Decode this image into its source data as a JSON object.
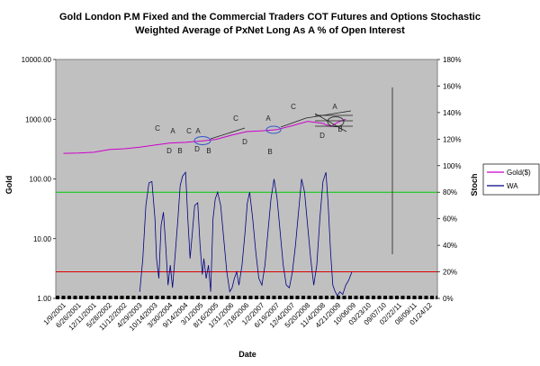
{
  "chart_data": {
    "type": "line",
    "title": "Gold London P.M Fixed and the Commercial Traders COT Futures and Options Stochastic",
    "subtitle": "Weighted Average of PxNet Long As A % of Open Interest",
    "xlabel": "Date",
    "ylabel_left": "Gold",
    "ylabel_right": "Stoch",
    "y_left_scale": "log",
    "y_left_range": [
      1,
      10000
    ],
    "y_left_ticks": [
      "1.00",
      "10.00",
      "100.00",
      "1000.00",
      "10000.00"
    ],
    "y_right_range": [
      0,
      180
    ],
    "y_right_ticks": [
      "0%",
      "20%",
      "40%",
      "60%",
      "80%",
      "100%",
      "120%",
      "140%",
      "160%",
      "180%"
    ],
    "x_ticks": [
      "1/9/2001",
      "6/26/2001",
      "12/11/2001",
      "5/28/2002",
      "11/12/2002",
      "4/29/2003",
      "10/14/2003",
      "3/30/2004",
      "9/14/2004",
      "3/1/2005",
      "8/16/2005",
      "1/31/2006",
      "7/18/2006",
      "1/2/2007",
      "6/19/2007",
      "12/4/2007",
      "5/20/2008",
      "11/4/2008",
      "4/21/2009",
      "10/06/09",
      "03/23/10",
      "09/07/10",
      "02/22/11",
      "08/09/11",
      "01/24/12"
    ],
    "reference_lines": [
      {
        "axis": "right",
        "value": 80,
        "color": "#00cc00"
      },
      {
        "axis": "right",
        "value": 20,
        "color": "#dd0000"
      }
    ],
    "gold_series": {
      "name": "Gold($)",
      "color": "#cc00cc",
      "x_index": [
        0,
        1,
        2,
        3,
        4,
        5,
        6,
        7,
        8,
        9,
        10,
        11,
        12,
        13,
        14,
        15,
        16,
        17,
        17.5,
        18,
        18.5
      ],
      "values": [
        268,
        272,
        280,
        310,
        320,
        340,
        370,
        400,
        410,
        430,
        460,
        540,
        620,
        640,
        670,
        780,
        920,
        850,
        750,
        900,
        1000
      ]
    },
    "stoch_series": {
      "name": "WA",
      "color": "#000080",
      "x_index": [
        5,
        5.2,
        5.4,
        5.6,
        5.8,
        6.0,
        6.1,
        6.25,
        6.4,
        6.55,
        6.7,
        6.85,
        7.0,
        7.15,
        7.3,
        7.5,
        7.65,
        7.8,
        8.0,
        8.15,
        8.3,
        8.45,
        8.6,
        8.8,
        8.95,
        9.1,
        9.2,
        9.35,
        9.5,
        9.65,
        9.8,
        9.95,
        10.1,
        10.3,
        10.5,
        10.7,
        10.9,
        11.05,
        11.2,
        11.35,
        11.5,
        11.7,
        11.9,
        12.05,
        12.2,
        12.4,
        12.6,
        12.8,
        13.0,
        13.2,
        13.4,
        13.6,
        13.8,
        14.0,
        14.2,
        14.4,
        14.6,
        14.8,
        15.0,
        15.2,
        15.4,
        15.6,
        15.8,
        16.0,
        16.2,
        16.4,
        16.6,
        16.8,
        17.0,
        17.2,
        17.35,
        17.5,
        17.65,
        17.8,
        17.95,
        18.1,
        18.3,
        18.5,
        18.7,
        18.9
      ],
      "values": [
        5,
        30,
        70,
        87,
        88,
        60,
        30,
        15,
        55,
        65,
        40,
        10,
        25,
        8,
        30,
        60,
        85,
        92,
        95,
        60,
        30,
        50,
        70,
        72,
        40,
        18,
        30,
        15,
        25,
        5,
        60,
        75,
        80,
        70,
        45,
        20,
        5,
        8,
        15,
        20,
        10,
        25,
        50,
        72,
        80,
        60,
        35,
        15,
        10,
        25,
        50,
        75,
        90,
        75,
        50,
        25,
        10,
        8,
        20,
        40,
        65,
        90,
        80,
        55,
        30,
        10,
        25,
        60,
        88,
        95,
        70,
        35,
        10,
        5,
        2,
        5,
        3,
        10,
        14,
        20
      ]
    },
    "annotations": [
      "C",
      "A",
      "D",
      "B",
      "C",
      "A",
      "D",
      "B",
      "C",
      "D",
      "A",
      "B",
      "C",
      "A",
      "D",
      "B"
    ],
    "legend": {
      "position": "right",
      "entries": [
        "Gold($)",
        "WA"
      ]
    }
  }
}
